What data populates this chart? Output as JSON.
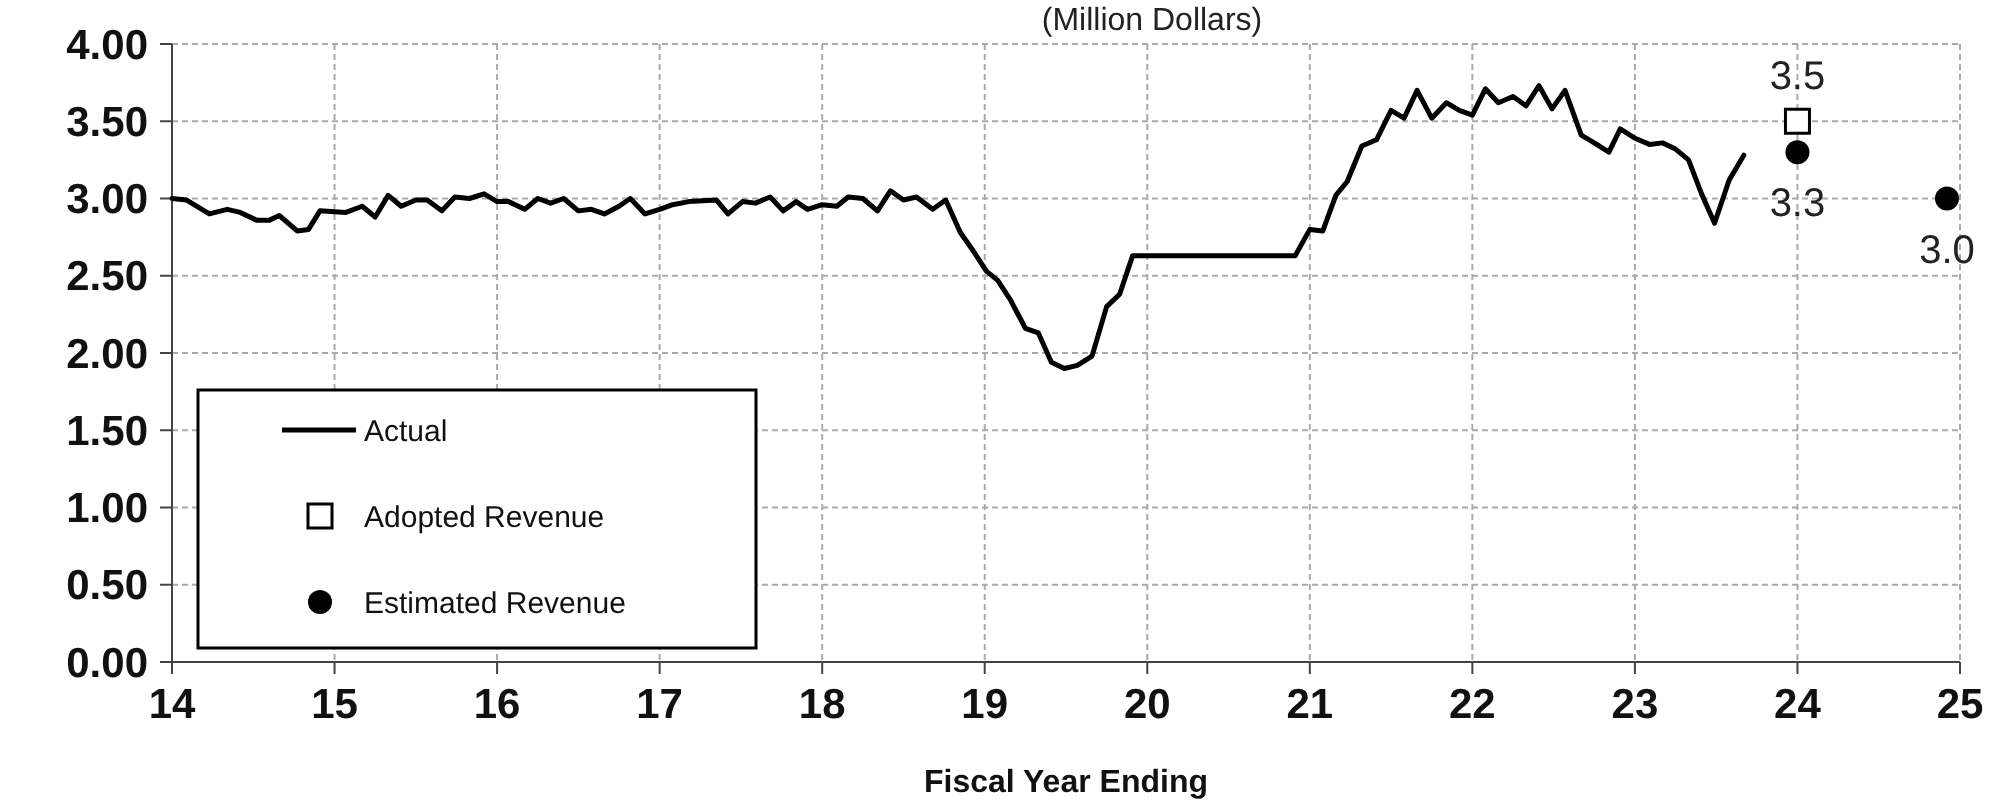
{
  "chart_data": {
    "type": "line",
    "title": "(Million Dollars)",
    "xlabel": "Fiscal Year Ending",
    "xlim": [
      14,
      25
    ],
    "xticks": [
      14,
      15,
      16,
      17,
      18,
      19,
      20,
      21,
      22,
      23,
      24,
      25
    ],
    "ylim": [
      0,
      4
    ],
    "yticks": [
      {
        "value": 0,
        "label": "0.00"
      },
      {
        "value": 0.5,
        "label": "0.50"
      },
      {
        "value": 1,
        "label": "1.00"
      },
      {
        "value": 1.5,
        "label": "1.50"
      },
      {
        "value": 2,
        "label": "2.00"
      },
      {
        "value": 2.5,
        "label": "2.50"
      },
      {
        "value": 3,
        "label": "3.00"
      },
      {
        "value": 3.5,
        "label": "3.50"
      },
      {
        "value": 4,
        "label": "4.00"
      }
    ],
    "grid": true,
    "legend": "bottom left",
    "series": [
      {
        "name": "Actual",
        "color": "#000000",
        "marker": "none",
        "line_style": "solid",
        "x": [
          14.0,
          14.09,
          14.23,
          14.34,
          14.42,
          14.52,
          14.6,
          14.66,
          14.77,
          14.84,
          14.91,
          15.07,
          15.17,
          15.25,
          15.33,
          15.41,
          15.5,
          15.57,
          15.66,
          15.74,
          15.83,
          15.92,
          16.0,
          16.07,
          16.17,
          16.25,
          16.33,
          16.41,
          16.5,
          16.58,
          16.66,
          16.75,
          16.82,
          16.91,
          17.0,
          17.08,
          17.18,
          17.35,
          17.42,
          17.51,
          17.59,
          17.68,
          17.76,
          17.84,
          17.91,
          18.0,
          18.09,
          18.16,
          18.25,
          18.34,
          18.42,
          18.5,
          18.58,
          18.68,
          18.76,
          18.85,
          18.93,
          19.01,
          19.08,
          19.16,
          19.25,
          19.33,
          19.41,
          19.49,
          19.57,
          19.66,
          19.75,
          19.83,
          19.91,
          20.91,
          21.0,
          21.08,
          21.16,
          21.23,
          21.32,
          21.41,
          21.5,
          21.58,
          21.66,
          21.75,
          21.84,
          21.92,
          22.0,
          22.08,
          22.16,
          22.25,
          22.33,
          22.41,
          22.49,
          22.57,
          22.67,
          22.75,
          22.84,
          22.91,
          23.0,
          23.09,
          23.17,
          23.25,
          23.33,
          23.41,
          23.49,
          23.58,
          23.67
        ],
        "values": [
          3.0,
          2.99,
          2.9,
          2.93,
          2.91,
          2.86,
          2.86,
          2.89,
          2.79,
          2.8,
          2.92,
          2.91,
          2.95,
          2.88,
          3.02,
          2.95,
          2.99,
          2.99,
          2.92,
          3.01,
          3.0,
          3.03,
          2.98,
          2.98,
          2.93,
          3.0,
          2.97,
          3.0,
          2.92,
          2.93,
          2.9,
          2.95,
          3.0,
          2.9,
          2.93,
          2.96,
          2.98,
          2.99,
          2.9,
          2.98,
          2.97,
          3.01,
          2.92,
          2.98,
          2.93,
          2.96,
          2.95,
          3.01,
          3.0,
          2.92,
          3.05,
          2.99,
          3.01,
          2.93,
          2.99,
          2.78,
          2.66,
          2.53,
          2.47,
          2.34,
          2.16,
          2.13,
          1.94,
          1.9,
          1.92,
          1.98,
          2.3,
          2.38,
          2.63,
          2.63,
          2.8,
          2.79,
          3.02,
          3.11,
          3.34,
          3.38,
          3.57,
          3.52,
          3.7,
          3.52,
          3.62,
          3.57,
          3.54,
          3.71,
          3.62,
          3.66,
          3.6,
          3.73,
          3.58,
          3.7,
          3.41,
          3.36,
          3.3,
          3.45,
          3.39,
          3.35,
          3.36,
          3.32,
          3.25,
          3.03,
          2.84,
          3.12,
          3.28
        ]
      },
      {
        "name": "Adopted Revenue",
        "type": "scatter",
        "color": "#000000",
        "marker": "square",
        "x": [
          24
        ],
        "values": [
          3.5
        ],
        "value_labels": [
          "3.5"
        ]
      },
      {
        "name": "Estimated Revenue",
        "type": "scatter",
        "color": "#000000",
        "marker": "circle",
        "x": [
          24,
          24.92
        ],
        "values": [
          3.3,
          3.0
        ],
        "value_labels": [
          "3.3",
          "3.0"
        ]
      }
    ]
  }
}
